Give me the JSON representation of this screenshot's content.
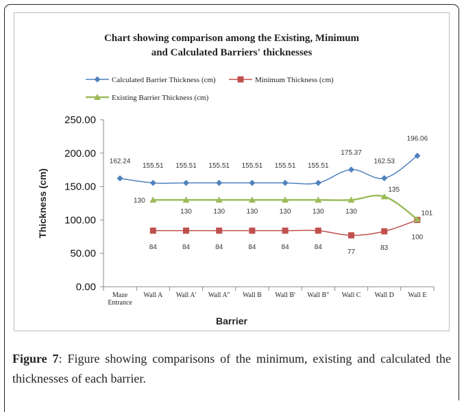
{
  "caption": {
    "label": "Figure 7",
    "text": ": Figure showing comparisons of the minimum, existing and calculated the thicknesses of each barrier."
  },
  "chart_data": {
    "type": "line",
    "title_lines": [
      "Chart showing comparison among the Existing, Minimum",
      "and Calculated Barriers' thicknesses"
    ],
    "xlabel": "Barrier",
    "ylabel": "Thickness (cm)",
    "ylim": [
      0,
      250
    ],
    "yticks": [
      "250.00",
      "200.00",
      "150.00",
      "100.00",
      "50.00",
      "0.00"
    ],
    "ytick_values": [
      250,
      200,
      150,
      100,
      50,
      0
    ],
    "grid": false,
    "legend_position": "top",
    "categories": [
      [
        "Maze",
        "Entrance"
      ],
      [
        "Wall A"
      ],
      [
        "Wall A'"
      ],
      [
        "Wall A\""
      ],
      [
        "Wall B"
      ],
      [
        "Wall B'"
      ],
      [
        "Wall B\""
      ],
      [
        "Wall C"
      ],
      [
        "Wall D"
      ],
      [
        "Wall E"
      ]
    ],
    "series": [
      {
        "name": "Calculated Barrier Thickness (cm)",
        "color": "#4f81bd",
        "marker": "diamond",
        "values": [
          162.24,
          155.51,
          155.51,
          155.51,
          155.51,
          155.51,
          155.51,
          175.37,
          162.53,
          196.06
        ],
        "labels": [
          "162.24",
          "155.51",
          "155.51",
          "155.51",
          "155.51",
          "155.51",
          "155.51",
          "175.37",
          "162.53",
          "196.06"
        ]
      },
      {
        "name": "Minimum Thickness (cm)",
        "color": "#c0504d",
        "marker": "square",
        "values": [
          null,
          84,
          84,
          84,
          84,
          84,
          84,
          77,
          83,
          100
        ],
        "labels": [
          null,
          "84",
          "84",
          "84",
          "84",
          "84",
          "84",
          "77",
          "83",
          "100"
        ]
      },
      {
        "name": "Existing Barrier Thickness (cm)",
        "color": "#9bbb59",
        "marker": "triangle",
        "values": [
          null,
          130,
          130,
          130,
          130,
          130,
          130,
          130,
          135,
          101
        ],
        "labels": [
          null,
          "130",
          "130",
          "130",
          "130",
          "130",
          "130",
          "130",
          "135",
          "101"
        ]
      }
    ]
  }
}
